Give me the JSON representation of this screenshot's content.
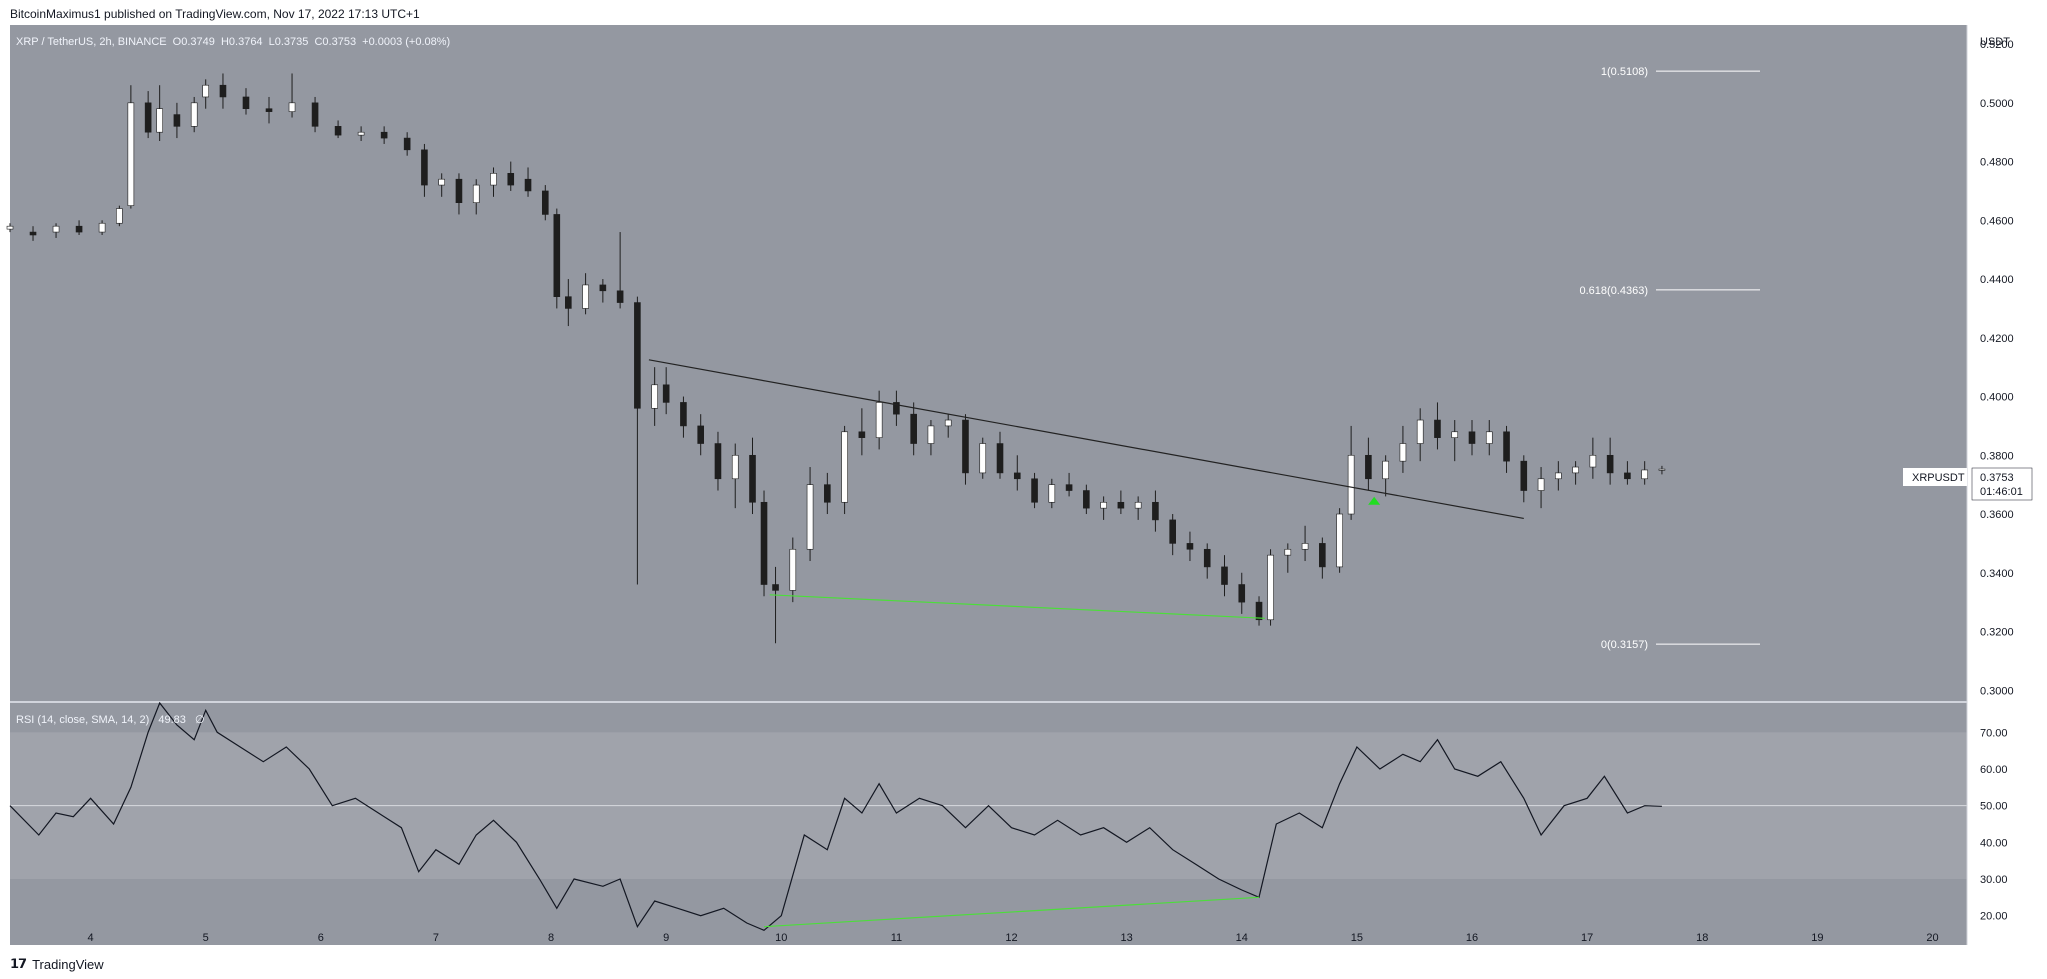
{
  "header": {
    "publisher": "BitcoinMaximus1 published on TradingView.com, Nov 17, 2022 17:13 UTC+1"
  },
  "symbol_bar": {
    "pair": "XRP / TetherUS, 2h, BINANCE",
    "o_label": "O",
    "o_value": "0.3749",
    "h_label": "H",
    "h_value": "0.3764",
    "l_label": "L",
    "l_value": "0.3735",
    "c_label": "C",
    "c_value": "0.3753",
    "change": "+0.0003 (+0.08%)"
  },
  "price_axis": {
    "unit": "USDT",
    "ticks": [
      "0.5200",
      "0.5000",
      "0.4800",
      "0.4600",
      "0.4400",
      "0.4200",
      "0.4000",
      "0.3800",
      "0.3600",
      "0.3400",
      "0.3200",
      "0.3000"
    ]
  },
  "price_tag": {
    "symbol": "XRPUSDT",
    "price": "0.3753",
    "countdown": "01:46:01"
  },
  "fib_levels": [
    {
      "label": "1(0.5108)",
      "price": 0.5108
    },
    {
      "label": "0.618(0.4363)",
      "price": 0.4363
    },
    {
      "label": "0(0.3157)",
      "price": 0.3157
    }
  ],
  "rsi_panel": {
    "label": "RSI (14, close, SMA, 14, 2)",
    "value": "49.83",
    "extra": "∅",
    "ticks": [
      "70.00",
      "60.00",
      "50.00",
      "40.00",
      "30.00",
      "20.00"
    ]
  },
  "x_axis": {
    "ticks": [
      "4",
      "5",
      "6",
      "7",
      "8",
      "9",
      "10",
      "11",
      "12",
      "13",
      "14",
      "15",
      "16",
      "17",
      "18",
      "19",
      "20"
    ]
  },
  "footer": {
    "brand": "TradingView"
  },
  "colors": {
    "panel_bg": "#9498a1",
    "rsi_band": "#a0a3ab",
    "bull": "#ffffff",
    "bear": "#1e1e1e",
    "divergence": "#4cde3a",
    "trendline": "#222222",
    "arrow": "#22dd22"
  },
  "chart_data": {
    "type": "candlestick",
    "x_unit": "day of Nov 2022",
    "ylim": [
      0.296,
      0.5265
    ],
    "xlim": [
      3.3,
      20.3
    ],
    "candles_ohlc_approx": [
      [
        3.3,
        0.457,
        0.459,
        0.456,
        0.458
      ],
      [
        3.5,
        0.456,
        0.458,
        0.453,
        0.455
      ],
      [
        3.7,
        0.456,
        0.459,
        0.454,
        0.458
      ],
      [
        3.9,
        0.458,
        0.46,
        0.455,
        0.456
      ],
      [
        4.1,
        0.456,
        0.46,
        0.455,
        0.459
      ],
      [
        4.25,
        0.459,
        0.465,
        0.458,
        0.464
      ],
      [
        4.35,
        0.465,
        0.506,
        0.464,
        0.5
      ],
      [
        4.5,
        0.5,
        0.504,
        0.488,
        0.49
      ],
      [
        4.6,
        0.49,
        0.506,
        0.487,
        0.498
      ],
      [
        4.75,
        0.496,
        0.5,
        0.488,
        0.492
      ],
      [
        4.9,
        0.492,
        0.502,
        0.49,
        0.5
      ],
      [
        5.0,
        0.502,
        0.508,
        0.498,
        0.506
      ],
      [
        5.15,
        0.506,
        0.51,
        0.498,
        0.502
      ],
      [
        5.35,
        0.502,
        0.505,
        0.496,
        0.498
      ],
      [
        5.55,
        0.498,
        0.502,
        0.493,
        0.497
      ],
      [
        5.75,
        0.497,
        0.51,
        0.495,
        0.5
      ],
      [
        5.95,
        0.5,
        0.502,
        0.49,
        0.492
      ],
      [
        6.15,
        0.492,
        0.494,
        0.488,
        0.489
      ],
      [
        6.35,
        0.489,
        0.492,
        0.487,
        0.49
      ],
      [
        6.55,
        0.49,
        0.492,
        0.486,
        0.488
      ],
      [
        6.75,
        0.488,
        0.49,
        0.482,
        0.484
      ],
      [
        6.9,
        0.484,
        0.486,
        0.468,
        0.472
      ],
      [
        7.05,
        0.472,
        0.476,
        0.468,
        0.474
      ],
      [
        7.2,
        0.474,
        0.476,
        0.462,
        0.466
      ],
      [
        7.35,
        0.466,
        0.474,
        0.462,
        0.472
      ],
      [
        7.5,
        0.472,
        0.478,
        0.468,
        0.476
      ],
      [
        7.65,
        0.476,
        0.48,
        0.47,
        0.472
      ],
      [
        7.8,
        0.474,
        0.478,
        0.468,
        0.47
      ],
      [
        7.95,
        0.47,
        0.472,
        0.46,
        0.462
      ],
      [
        8.05,
        0.462,
        0.464,
        0.43,
        0.434
      ],
      [
        8.15,
        0.434,
        0.44,
        0.424,
        0.43
      ],
      [
        8.3,
        0.43,
        0.442,
        0.428,
        0.438
      ],
      [
        8.45,
        0.438,
        0.44,
        0.432,
        0.436
      ],
      [
        8.6,
        0.436,
        0.456,
        0.43,
        0.432
      ],
      [
        8.75,
        0.432,
        0.434,
        0.336,
        0.396
      ],
      [
        8.9,
        0.396,
        0.41,
        0.39,
        0.404
      ],
      [
        9.0,
        0.404,
        0.41,
        0.394,
        0.398
      ],
      [
        9.15,
        0.398,
        0.4,
        0.386,
        0.39
      ],
      [
        9.3,
        0.39,
        0.394,
        0.38,
        0.384
      ],
      [
        9.45,
        0.384,
        0.388,
        0.368,
        0.372
      ],
      [
        9.6,
        0.372,
        0.384,
        0.362,
        0.38
      ],
      [
        9.75,
        0.38,
        0.386,
        0.36,
        0.364
      ],
      [
        9.85,
        0.364,
        0.368,
        0.332,
        0.336
      ],
      [
        9.95,
        0.336,
        0.342,
        0.316,
        0.334
      ],
      [
        10.1,
        0.334,
        0.352,
        0.33,
        0.348
      ],
      [
        10.25,
        0.348,
        0.376,
        0.344,
        0.37
      ],
      [
        10.4,
        0.37,
        0.374,
        0.36,
        0.364
      ],
      [
        10.55,
        0.364,
        0.39,
        0.36,
        0.388
      ],
      [
        10.7,
        0.388,
        0.396,
        0.38,
        0.386
      ],
      [
        10.85,
        0.386,
        0.402,
        0.382,
        0.398
      ],
      [
        11.0,
        0.398,
        0.402,
        0.39,
        0.394
      ],
      [
        11.15,
        0.394,
        0.398,
        0.38,
        0.384
      ],
      [
        11.3,
        0.384,
        0.392,
        0.38,
        0.39
      ],
      [
        11.45,
        0.39,
        0.394,
        0.386,
        0.392
      ],
      [
        11.6,
        0.392,
        0.394,
        0.37,
        0.374
      ],
      [
        11.75,
        0.374,
        0.386,
        0.372,
        0.384
      ],
      [
        11.9,
        0.384,
        0.388,
        0.372,
        0.374
      ],
      [
        12.05,
        0.374,
        0.38,
        0.368,
        0.372
      ],
      [
        12.2,
        0.372,
        0.374,
        0.362,
        0.364
      ],
      [
        12.35,
        0.364,
        0.372,
        0.362,
        0.37
      ],
      [
        12.5,
        0.37,
        0.374,
        0.366,
        0.368
      ],
      [
        12.65,
        0.368,
        0.37,
        0.36,
        0.362
      ],
      [
        12.8,
        0.362,
        0.366,
        0.358,
        0.364
      ],
      [
        12.95,
        0.364,
        0.368,
        0.36,
        0.362
      ],
      [
        13.1,
        0.362,
        0.366,
        0.358,
        0.364
      ],
      [
        13.25,
        0.364,
        0.368,
        0.354,
        0.358
      ],
      [
        13.4,
        0.358,
        0.36,
        0.346,
        0.35
      ],
      [
        13.55,
        0.35,
        0.354,
        0.344,
        0.348
      ],
      [
        13.7,
        0.348,
        0.35,
        0.338,
        0.342
      ],
      [
        13.85,
        0.342,
        0.346,
        0.332,
        0.336
      ],
      [
        14.0,
        0.336,
        0.34,
        0.326,
        0.33
      ],
      [
        14.15,
        0.33,
        0.332,
        0.322,
        0.324
      ],
      [
        14.25,
        0.324,
        0.348,
        0.322,
        0.346
      ],
      [
        14.4,
        0.346,
        0.35,
        0.34,
        0.348
      ],
      [
        14.55,
        0.348,
        0.356,
        0.344,
        0.35
      ],
      [
        14.7,
        0.35,
        0.352,
        0.338,
        0.342
      ],
      [
        14.85,
        0.342,
        0.362,
        0.34,
        0.36
      ],
      [
        14.95,
        0.36,
        0.39,
        0.358,
        0.38
      ],
      [
        15.1,
        0.38,
        0.386,
        0.368,
        0.372
      ],
      [
        15.25,
        0.372,
        0.38,
        0.366,
        0.378
      ],
      [
        15.4,
        0.378,
        0.39,
        0.374,
        0.384
      ],
      [
        15.55,
        0.384,
        0.396,
        0.378,
        0.392
      ],
      [
        15.7,
        0.392,
        0.398,
        0.382,
        0.386
      ],
      [
        15.85,
        0.386,
        0.392,
        0.378,
        0.388
      ],
      [
        16.0,
        0.388,
        0.392,
        0.38,
        0.384
      ],
      [
        16.15,
        0.384,
        0.392,
        0.38,
        0.388
      ],
      [
        16.3,
        0.388,
        0.39,
        0.374,
        0.378
      ],
      [
        16.45,
        0.378,
        0.38,
        0.364,
        0.368
      ],
      [
        16.6,
        0.368,
        0.376,
        0.362,
        0.372
      ],
      [
        16.75,
        0.372,
        0.378,
        0.368,
        0.374
      ],
      [
        16.9,
        0.374,
        0.378,
        0.37,
        0.376
      ],
      [
        17.05,
        0.376,
        0.386,
        0.372,
        0.38
      ],
      [
        17.2,
        0.38,
        0.386,
        0.37,
        0.374
      ],
      [
        17.35,
        0.374,
        0.378,
        0.37,
        0.372
      ],
      [
        17.5,
        0.372,
        0.378,
        0.37,
        0.375
      ],
      [
        17.65,
        0.3749,
        0.3764,
        0.3735,
        0.3753
      ]
    ],
    "trendline": [
      [
        8.85,
        0.4125
      ],
      [
        16.45,
        0.3585
      ]
    ],
    "price_divergence_line": [
      [
        9.9,
        0.3325
      ],
      [
        14.2,
        0.3245
      ]
    ],
    "rsi_ylim": [
      12,
      78
    ],
    "rsi_series_approx": [
      [
        3.3,
        50
      ],
      [
        3.55,
        42
      ],
      [
        3.7,
        48
      ],
      [
        3.85,
        47
      ],
      [
        4.0,
        52
      ],
      [
        4.2,
        45
      ],
      [
        4.35,
        55
      ],
      [
        4.5,
        70
      ],
      [
        4.6,
        78
      ],
      [
        4.75,
        72
      ],
      [
        4.9,
        68
      ],
      [
        5.0,
        76
      ],
      [
        5.1,
        70
      ],
      [
        5.3,
        66
      ],
      [
        5.5,
        62
      ],
      [
        5.7,
        66
      ],
      [
        5.9,
        60
      ],
      [
        6.1,
        50
      ],
      [
        6.3,
        52
      ],
      [
        6.5,
        48
      ],
      [
        6.7,
        44
      ],
      [
        6.85,
        32
      ],
      [
        7.0,
        38
      ],
      [
        7.2,
        34
      ],
      [
        7.35,
        42
      ],
      [
        7.5,
        46
      ],
      [
        7.7,
        40
      ],
      [
        7.9,
        30
      ],
      [
        8.05,
        22
      ],
      [
        8.2,
        30
      ],
      [
        8.45,
        28
      ],
      [
        8.6,
        30
      ],
      [
        8.75,
        17
      ],
      [
        8.9,
        24
      ],
      [
        9.1,
        22
      ],
      [
        9.3,
        20
      ],
      [
        9.5,
        22
      ],
      [
        9.7,
        18
      ],
      [
        9.85,
        16
      ],
      [
        10.0,
        20
      ],
      [
        10.2,
        42
      ],
      [
        10.4,
        38
      ],
      [
        10.55,
        52
      ],
      [
        10.7,
        48
      ],
      [
        10.85,
        56
      ],
      [
        11.0,
        48
      ],
      [
        11.2,
        52
      ],
      [
        11.4,
        50
      ],
      [
        11.6,
        44
      ],
      [
        11.8,
        50
      ],
      [
        12.0,
        44
      ],
      [
        12.2,
        42
      ],
      [
        12.4,
        46
      ],
      [
        12.6,
        42
      ],
      [
        12.8,
        44
      ],
      [
        13.0,
        40
      ],
      [
        13.2,
        44
      ],
      [
        13.4,
        38
      ],
      [
        13.6,
        34
      ],
      [
        13.8,
        30
      ],
      [
        14.0,
        27
      ],
      [
        14.15,
        25
      ],
      [
        14.3,
        45
      ],
      [
        14.5,
        48
      ],
      [
        14.7,
        44
      ],
      [
        14.85,
        56
      ],
      [
        15.0,
        66
      ],
      [
        15.2,
        60
      ],
      [
        15.4,
        64
      ],
      [
        15.55,
        62
      ],
      [
        15.7,
        68
      ],
      [
        15.85,
        60
      ],
      [
        16.05,
        58
      ],
      [
        16.25,
        62
      ],
      [
        16.45,
        52
      ],
      [
        16.6,
        42
      ],
      [
        16.8,
        50
      ],
      [
        17.0,
        52
      ],
      [
        17.15,
        58
      ],
      [
        17.35,
        48
      ],
      [
        17.5,
        50
      ],
      [
        17.65,
        49.83
      ]
    ],
    "rsi_divergence_line": [
      [
        9.85,
        17
      ],
      [
        14.15,
        25
      ]
    ],
    "rsi_bands": [
      30,
      70
    ],
    "arrow_marker": [
      15.15,
      0.3645
    ]
  }
}
